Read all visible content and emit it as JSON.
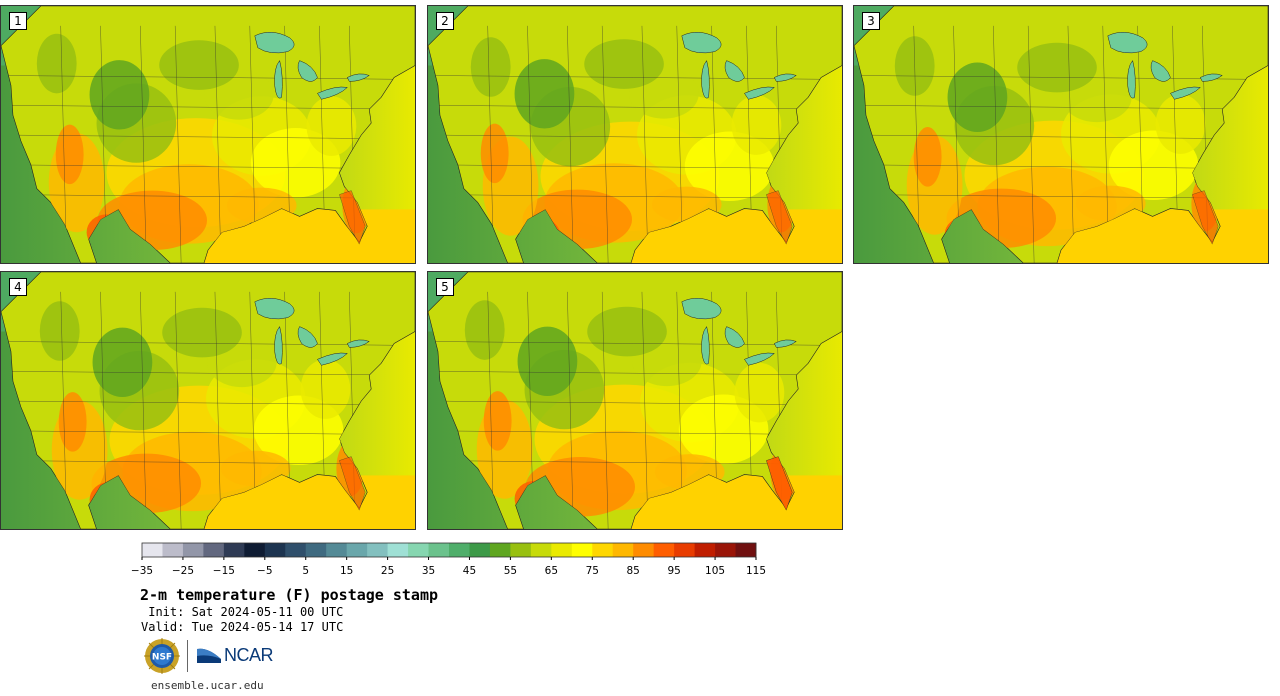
{
  "panels": [
    {
      "label": "1",
      "variant": 0
    },
    {
      "label": "2",
      "variant": 1
    },
    {
      "label": "3",
      "variant": 2
    },
    {
      "label": "4",
      "variant": 3
    },
    {
      "label": "5",
      "variant": 4
    }
  ],
  "colorbar": {
    "colors": [
      "#e6e6ee",
      "#bcbcca",
      "#9296a8",
      "#62687f",
      "#2f3b55",
      "#0f1c33",
      "#1d3450",
      "#2f4f6b",
      "#3f6a80",
      "#548a96",
      "#6aa7ab",
      "#83c0bf",
      "#9fe0d5",
      "#86d6b0",
      "#6bc28c",
      "#4fae6a",
      "#3d9a48",
      "#5fa620",
      "#98c010",
      "#c7db0a",
      "#eaea00",
      "#ffff00",
      "#ffd700",
      "#ffb800",
      "#ff8c00",
      "#ff5e00",
      "#e83c00",
      "#c01e00",
      "#9a1508",
      "#701010"
    ],
    "tick_labels": [
      "−35",
      "−25",
      "−15",
      "−5",
      "5",
      "15",
      "25",
      "35",
      "45",
      "55",
      "65",
      "75",
      "85",
      "95",
      "105",
      "115"
    ]
  },
  "title": "2-m temperature (F) postage stamp",
  "init_text": " Init: Sat 2024-05-11 00 UTC",
  "valid_text": "Valid: Tue 2024-05-14 17 UTC",
  "logos": {
    "nsf": "NSF",
    "ncar": "NCAR"
  },
  "url": "ensemble.ucar.edu",
  "colors": {
    "ocean_west": "#4a9a3e",
    "ocean_east": "#e8ea00",
    "gulf": "#ffd200",
    "lakes": "#6fcc9a"
  }
}
